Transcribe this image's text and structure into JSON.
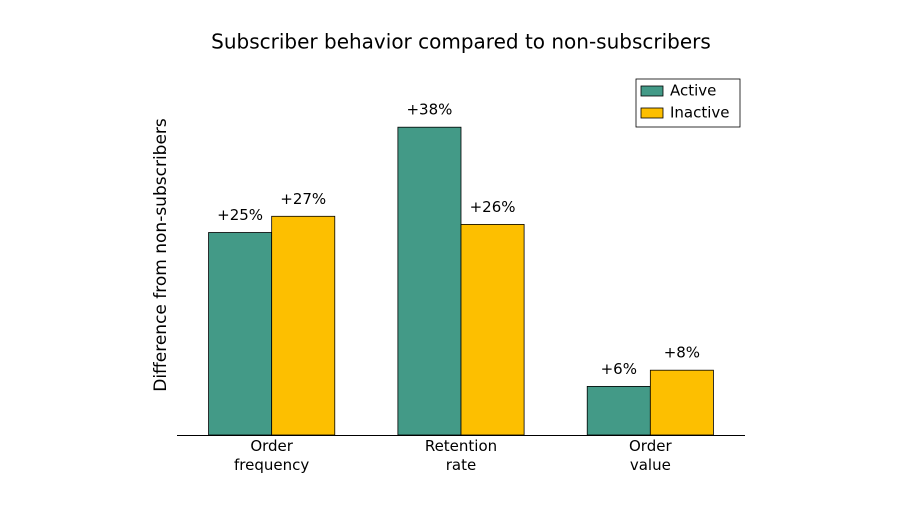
{
  "chart_data": {
    "type": "bar",
    "title": "Subscriber behavior compared to non-subscribers",
    "y_label": "Difference from non-subscribers",
    "categories": [
      "Order\nfrequency",
      "Retention\nrate",
      "Order\nvalue"
    ],
    "series": [
      {
        "name": "Active",
        "color": "#439a87",
        "values": [
          25,
          38,
          6
        ],
        "value_labels": [
          "+25%",
          "+38%",
          "+6%"
        ]
      },
      {
        "name": "Inactive",
        "color": "#fdbf00",
        "values": [
          27,
          26,
          8
        ],
        "value_labels": [
          "+27%",
          "+26%",
          "+8%"
        ]
      }
    ],
    "ylim": [
      0,
      40
    ],
    "legend": "upper right"
  }
}
